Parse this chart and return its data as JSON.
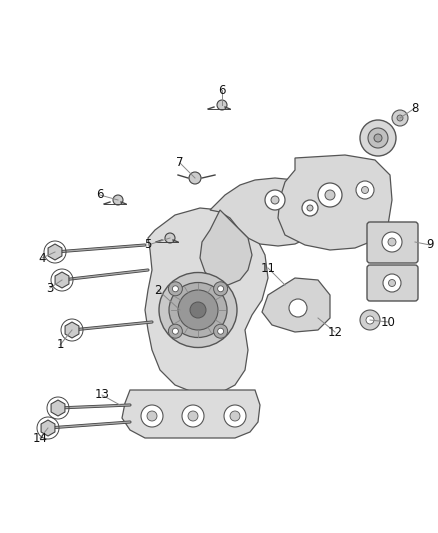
{
  "background_color": "#ffffff",
  "fig_width": 4.38,
  "fig_height": 5.33,
  "dpi": 100,
  "line_color": "#888888",
  "part_color": "#444444",
  "outline_color": "#555555",
  "fill_light": "#e8e8e8",
  "fill_mid": "#d4d4d4",
  "fill_dark": "#c0c0c0",
  "label_color": "#111111",
  "label_fontsize": 8.5,
  "leader_lw": 0.7
}
